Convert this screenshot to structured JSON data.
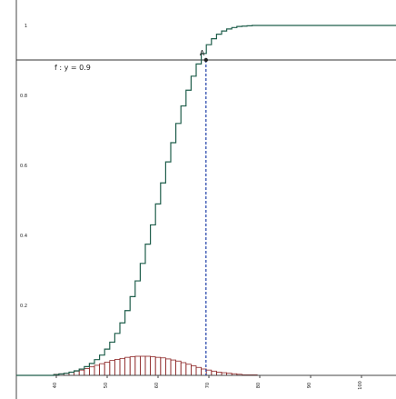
{
  "chart_data": {
    "type": "line",
    "x_ticks": [
      40,
      50,
      60,
      70,
      80,
      90,
      100
    ],
    "y_ticks": [
      0.2,
      0.4,
      0.6,
      0.8,
      1
    ],
    "x_range": [
      32,
      107
    ],
    "y_range": [
      -0.02,
      1.03
    ],
    "annotations": {
      "line_label": "f : y = 0.9",
      "point_label": "A",
      "point": {
        "x": 68,
        "y": 0.9
      },
      "horizontal_line_y": 0.9
    },
    "series": [
      {
        "kind": "cumulative-step",
        "color": "#1f5e4b",
        "x_start": 40,
        "step": 1,
        "values": [
          0.002,
          0.004,
          0.006,
          0.009,
          0.013,
          0.018,
          0.025,
          0.034,
          0.045,
          0.058,
          0.075,
          0.095,
          0.12,
          0.15,
          0.185,
          0.225,
          0.27,
          0.32,
          0.375,
          0.43,
          0.49,
          0.55,
          0.61,
          0.665,
          0.72,
          0.77,
          0.815,
          0.855,
          0.89,
          0.92,
          0.945,
          0.962,
          0.975,
          0.984,
          0.99,
          0.994,
          0.997,
          0.998,
          0.999,
          1,
          1,
          1,
          1,
          1,
          1,
          1,
          1,
          1,
          1,
          1,
          1,
          1,
          1,
          1,
          1,
          1,
          1,
          1,
          1,
          1,
          1,
          1,
          1,
          1,
          1,
          1,
          1,
          1
        ]
      },
      {
        "kind": "probability-bars",
        "color": "#8b2323",
        "x_start": 40,
        "step": 1,
        "values": [
          0.002,
          0.003,
          0.004,
          0.006,
          0.008,
          0.01,
          0.013,
          0.016,
          0.019,
          0.022,
          0.025,
          0.028,
          0.03,
          0.032,
          0.034,
          0.035,
          0.036,
          0.036,
          0.036,
          0.035,
          0.034,
          0.033,
          0.031,
          0.029,
          0.027,
          0.024,
          0.021,
          0.018,
          0.015,
          0.012,
          0.01,
          0.008,
          0.006,
          0.005,
          0.004,
          0.003,
          0.002,
          0.001,
          0.001,
          0.001
        ]
      }
    ]
  }
}
